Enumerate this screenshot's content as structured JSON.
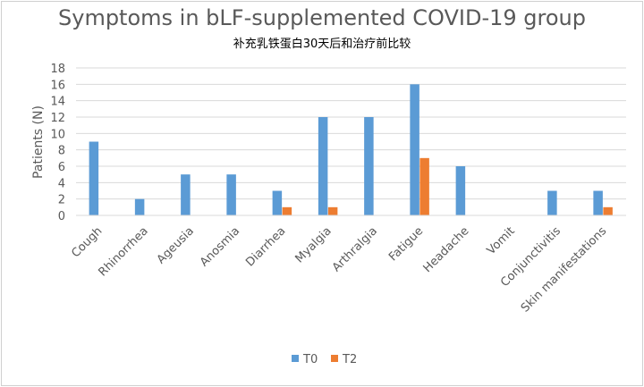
{
  "chart_data": {
    "type": "bar",
    "title": "Symptoms in bLF-supplemented COVID-19 group",
    "subtitle": "补充乳铁蛋白30天后和治疗前比较",
    "xlabel": "",
    "ylabel": "Patients (N)",
    "ylim": [
      0,
      18
    ],
    "yticks": [
      0,
      2,
      4,
      6,
      8,
      10,
      12,
      14,
      16,
      18
    ],
    "grid": true,
    "legend_position": "bottom",
    "categories": [
      "Cough",
      "Rhinorrhea",
      "Ageusia",
      "Anosmia",
      "Diarrhea",
      "Myalgia",
      "Arthralgia",
      "Fatigue",
      "Headache",
      "Vomit",
      "Conjunctivitis",
      "Skin manifestations"
    ],
    "series": [
      {
        "name": "T0",
        "color": "#5B9BD5",
        "values": [
          9,
          2,
          5,
          5,
          3,
          12,
          12,
          16,
          6,
          0,
          3,
          3
        ]
      },
      {
        "name": "T2",
        "color": "#ED7D31",
        "values": [
          0,
          0,
          0,
          0,
          1,
          1,
          0,
          7,
          0,
          0,
          0,
          1
        ]
      }
    ]
  }
}
